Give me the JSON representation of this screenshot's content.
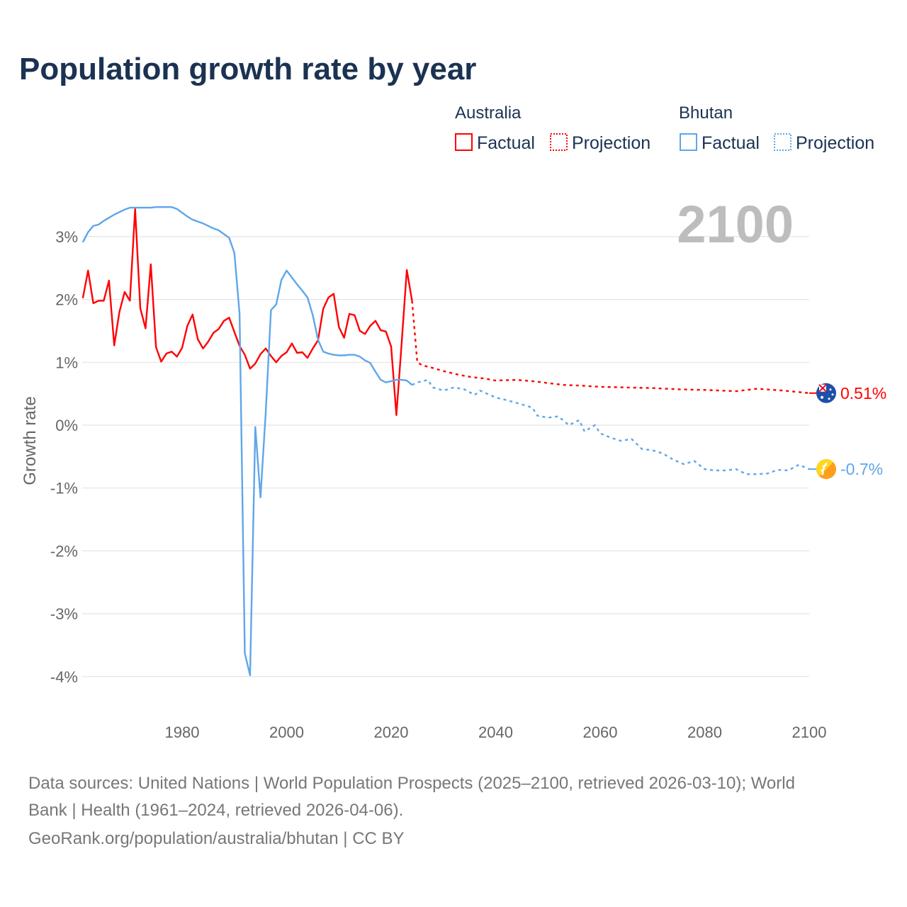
{
  "chart_data": {
    "type": "line",
    "title": "Population growth rate by year",
    "ylabel": "Growth rate",
    "xlabel": "",
    "xlim": [
      1961,
      2100
    ],
    "ylim": [
      -4,
      3.5
    ],
    "x_ticks": [
      "1980",
      "2000",
      "2020",
      "2040",
      "2060",
      "2080",
      "2100"
    ],
    "x_tick_values": [
      1980,
      2000,
      2020,
      2040,
      2060,
      2080,
      2100
    ],
    "y_ticks": [
      "3%",
      "2%",
      "1%",
      "0%",
      "-1%",
      "-2%",
      "-3%",
      "-4%"
    ],
    "y_tick_values": [
      3,
      2,
      1,
      0,
      -1,
      -2,
      -3,
      -4
    ],
    "grid": true,
    "current_year_label": "2100",
    "legend": {
      "placement": "top-right",
      "groups": [
        {
          "country": "Australia",
          "factual": "Factual",
          "projection": "Projection",
          "color": "#ff0000"
        },
        {
          "country": "Bhutan",
          "factual": "Factual",
          "projection": "Projection",
          "color": "#5ea6ea"
        }
      ]
    },
    "series": [
      {
        "name": "Australia",
        "color": "#ff0000",
        "end_label": "0.51%",
        "flag": "australia-flag",
        "factual": [
          [
            1961,
            2.02
          ],
          [
            1962,
            2.46
          ],
          [
            1963,
            1.94
          ],
          [
            1964,
            1.98
          ],
          [
            1965,
            1.98
          ],
          [
            1966,
            2.3
          ],
          [
            1967,
            1.27
          ],
          [
            1968,
            1.8
          ],
          [
            1969,
            2.12
          ],
          [
            1970,
            1.98
          ],
          [
            1971,
            3.44
          ],
          [
            1972,
            1.86
          ],
          [
            1973,
            1.54
          ],
          [
            1974,
            2.56
          ],
          [
            1975,
            1.24
          ],
          [
            1976,
            1.01
          ],
          [
            1977,
            1.14
          ],
          [
            1978,
            1.17
          ],
          [
            1979,
            1.09
          ],
          [
            1980,
            1.23
          ],
          [
            1981,
            1.58
          ],
          [
            1982,
            1.76
          ],
          [
            1983,
            1.37
          ],
          [
            1984,
            1.22
          ],
          [
            1985,
            1.33
          ],
          [
            1986,
            1.47
          ],
          [
            1987,
            1.53
          ],
          [
            1988,
            1.66
          ],
          [
            1989,
            1.71
          ],
          [
            1990,
            1.48
          ],
          [
            1991,
            1.26
          ],
          [
            1992,
            1.12
          ],
          [
            1993,
            0.9
          ],
          [
            1994,
            0.98
          ],
          [
            1995,
            1.13
          ],
          [
            1996,
            1.22
          ],
          [
            1997,
            1.1
          ],
          [
            1998,
            1.0
          ],
          [
            1999,
            1.1
          ],
          [
            2000,
            1.16
          ],
          [
            2001,
            1.3
          ],
          [
            2002,
            1.15
          ],
          [
            2003,
            1.16
          ],
          [
            2004,
            1.07
          ],
          [
            2005,
            1.22
          ],
          [
            2006,
            1.35
          ],
          [
            2007,
            1.85
          ],
          [
            2008,
            2.03
          ],
          [
            2009,
            2.09
          ],
          [
            2010,
            1.56
          ],
          [
            2011,
            1.39
          ],
          [
            2012,
            1.77
          ],
          [
            2013,
            1.75
          ],
          [
            2014,
            1.5
          ],
          [
            2015,
            1.45
          ],
          [
            2016,
            1.58
          ],
          [
            2017,
            1.66
          ],
          [
            2018,
            1.51
          ],
          [
            2019,
            1.49
          ],
          [
            2020,
            1.25
          ],
          [
            2021,
            0.16
          ],
          [
            2022,
            1.3
          ],
          [
            2023,
            2.47
          ],
          [
            2024,
            1.98
          ]
        ],
        "projection": [
          [
            2024,
            1.98
          ],
          [
            2025,
            1.0
          ],
          [
            2026,
            0.95
          ],
          [
            2028,
            0.91
          ],
          [
            2030,
            0.86
          ],
          [
            2033,
            0.8
          ],
          [
            2035,
            0.77
          ],
          [
            2038,
            0.74
          ],
          [
            2040,
            0.71
          ],
          [
            2044,
            0.72
          ],
          [
            2047,
            0.7
          ],
          [
            2050,
            0.67
          ],
          [
            2053,
            0.64
          ],
          [
            2056,
            0.63
          ],
          [
            2060,
            0.61
          ],
          [
            2065,
            0.6
          ],
          [
            2070,
            0.59
          ],
          [
            2075,
            0.57
          ],
          [
            2080,
            0.56
          ],
          [
            2086,
            0.54
          ],
          [
            2090,
            0.58
          ],
          [
            2095,
            0.55
          ],
          [
            2100,
            0.51
          ]
        ]
      },
      {
        "name": "Bhutan",
        "color": "#5ea6ea",
        "end_label": "-0.7%",
        "flag": "bhutan-flag",
        "factual": [
          [
            1961,
            2.91
          ],
          [
            1962,
            3.07
          ],
          [
            1963,
            3.17
          ],
          [
            1964,
            3.19
          ],
          [
            1965,
            3.25
          ],
          [
            1966,
            3.3
          ],
          [
            1967,
            3.35
          ],
          [
            1968,
            3.39
          ],
          [
            1969,
            3.43
          ],
          [
            1970,
            3.46
          ],
          [
            1971,
            3.46
          ],
          [
            1972,
            3.46
          ],
          [
            1973,
            3.46
          ],
          [
            1974,
            3.46
          ],
          [
            1975,
            3.47
          ],
          [
            1976,
            3.47
          ],
          [
            1977,
            3.47
          ],
          [
            1978,
            3.47
          ],
          [
            1979,
            3.44
          ],
          [
            1980,
            3.38
          ],
          [
            1981,
            3.32
          ],
          [
            1982,
            3.27
          ],
          [
            1983,
            3.24
          ],
          [
            1984,
            3.21
          ],
          [
            1985,
            3.17
          ],
          [
            1986,
            3.13
          ],
          [
            1987,
            3.1
          ],
          [
            1988,
            3.04
          ],
          [
            1989,
            2.98
          ],
          [
            1990,
            2.74
          ],
          [
            1991,
            1.77
          ],
          [
            1992,
            -3.63
          ],
          [
            1993,
            -3.98
          ],
          [
            1994,
            -0.03
          ],
          [
            1995,
            -1.15
          ],
          [
            1996,
            0.2
          ],
          [
            1997,
            1.83
          ],
          [
            1998,
            1.92
          ],
          [
            1999,
            2.31
          ],
          [
            2000,
            2.46
          ],
          [
            2001,
            2.35
          ],
          [
            2002,
            2.24
          ],
          [
            2003,
            2.14
          ],
          [
            2004,
            2.03
          ],
          [
            2005,
            1.75
          ],
          [
            2006,
            1.36
          ],
          [
            2007,
            1.17
          ],
          [
            2008,
            1.14
          ],
          [
            2009,
            1.12
          ],
          [
            2010,
            1.11
          ],
          [
            2011,
            1.11
          ],
          [
            2012,
            1.12
          ],
          [
            2013,
            1.12
          ],
          [
            2014,
            1.09
          ],
          [
            2015,
            1.03
          ],
          [
            2016,
            0.99
          ],
          [
            2017,
            0.85
          ],
          [
            2018,
            0.72
          ],
          [
            2019,
            0.68
          ],
          [
            2020,
            0.7
          ],
          [
            2021,
            0.72
          ],
          [
            2022,
            0.72
          ],
          [
            2023,
            0.71
          ],
          [
            2024,
            0.64
          ]
        ],
        "projection": [
          [
            2024,
            0.64
          ],
          [
            2025,
            0.68
          ],
          [
            2026,
            0.7
          ],
          [
            2027,
            0.72
          ],
          [
            2028,
            0.6
          ],
          [
            2030,
            0.55
          ],
          [
            2032,
            0.6
          ],
          [
            2034,
            0.57
          ],
          [
            2036,
            0.48
          ],
          [
            2037,
            0.55
          ],
          [
            2040,
            0.44
          ],
          [
            2042,
            0.4
          ],
          [
            2045,
            0.33
          ],
          [
            2047,
            0.28
          ],
          [
            2048,
            0.15
          ],
          [
            2050,
            0.12
          ],
          [
            2052,
            0.14
          ],
          [
            2054,
            0.0
          ],
          [
            2056,
            0.08
          ],
          [
            2057,
            -0.1
          ],
          [
            2059,
            0.0
          ],
          [
            2060,
            -0.13
          ],
          [
            2062,
            -0.2
          ],
          [
            2064,
            -0.25
          ],
          [
            2066,
            -0.22
          ],
          [
            2068,
            -0.38
          ],
          [
            2070,
            -0.4
          ],
          [
            2072,
            -0.45
          ],
          [
            2074,
            -0.55
          ],
          [
            2076,
            -0.62
          ],
          [
            2078,
            -0.57
          ],
          [
            2080,
            -0.7
          ],
          [
            2082,
            -0.72
          ],
          [
            2084,
            -0.72
          ],
          [
            2086,
            -0.7
          ],
          [
            2088,
            -0.78
          ],
          [
            2090,
            -0.78
          ],
          [
            2092,
            -0.77
          ],
          [
            2094,
            -0.71
          ],
          [
            2096,
            -0.72
          ],
          [
            2098,
            -0.63
          ],
          [
            2100,
            -0.7
          ]
        ]
      }
    ]
  },
  "footer": {
    "line1": "Data sources: United Nations | World Population Prospects (2025–2100, retrieved 2026-03-10); World",
    "line2": "Bank | Health (1961–2024, retrieved 2026-04-06).",
    "line3": "GeoRank.org/population/australia/bhutan | CC BY"
  }
}
